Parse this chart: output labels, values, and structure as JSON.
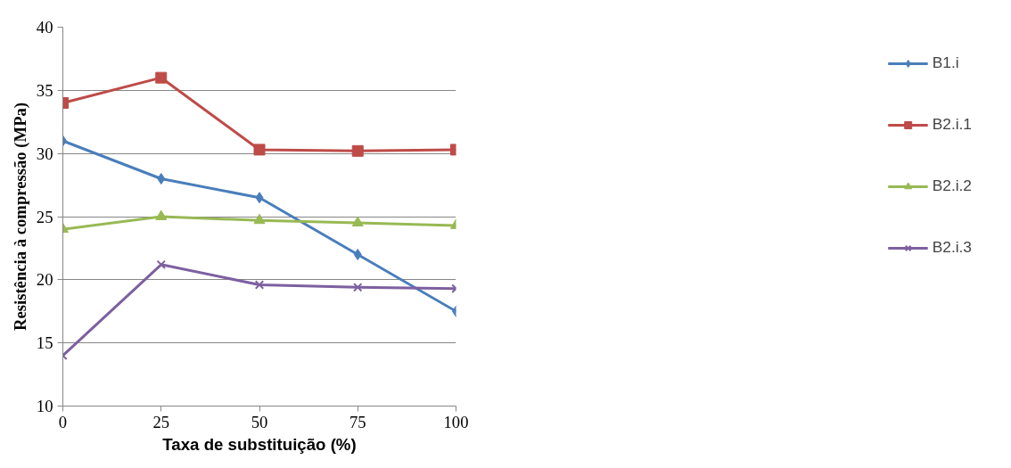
{
  "chart_data": {
    "type": "line",
    "xlabel": "Taxa de substituição (%)",
    "ylabel": "Resistência à compressão (MPa)",
    "x": [
      0,
      25,
      50,
      75,
      100
    ],
    "xlim": [
      0,
      100
    ],
    "xticks": [
      0,
      25,
      50,
      75,
      100
    ],
    "ylim": [
      10,
      40
    ],
    "yticks": [
      10,
      15,
      20,
      25,
      30,
      35,
      40
    ],
    "grid": "y",
    "legend": "right",
    "line_style": "solid",
    "series": [
      {
        "name": "B1.i",
        "color": "#4a7ebb",
        "marker": "diamond",
        "values": [
          31,
          28,
          26.5,
          22,
          17.5
        ]
      },
      {
        "name": "B2.i.1",
        "color": "#be4b48",
        "marker": "square",
        "values": [
          34,
          36,
          30.3,
          30.2,
          30.3
        ]
      },
      {
        "name": "B2.i.2",
        "color": "#98b954",
        "marker": "triangle",
        "values": [
          24,
          25,
          24.7,
          24.5,
          24.3
        ]
      },
      {
        "name": "B2.i.3",
        "color": "#7d60a0",
        "marker": "cross",
        "values": [
          14,
          21.2,
          19.6,
          19.4,
          19.3
        ]
      }
    ]
  }
}
